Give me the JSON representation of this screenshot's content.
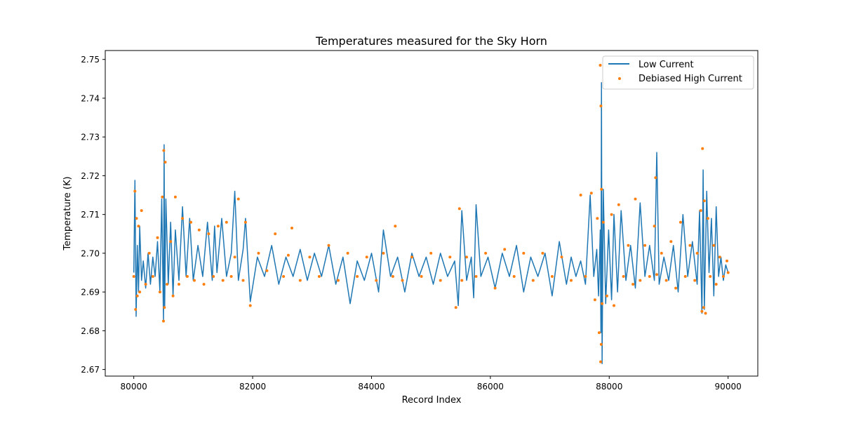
{
  "chart_data": {
    "type": "line",
    "title": "Temperatures measured for the Sky Horn",
    "xlabel": "Record Index",
    "ylabel": "Temperature (K)",
    "xlim": [
      79520,
      90500
    ],
    "ylim": [
      2.6683,
      2.7523
    ],
    "x_ticks": [
      80000,
      82000,
      84000,
      86000,
      88000,
      90000
    ],
    "x_tick_labels": [
      "80000",
      "82000",
      "84000",
      "86000",
      "88000",
      "90000"
    ],
    "y_ticks": [
      2.67,
      2.68,
      2.69,
      2.7,
      2.71,
      2.72,
      2.73,
      2.74,
      2.75
    ],
    "y_tick_labels": [
      "2.67",
      "2.68",
      "2.69",
      "2.70",
      "2.71",
      "2.72",
      "2.73",
      "2.74",
      "2.75"
    ],
    "grid": false,
    "legend_position": "top-right",
    "series": [
      {
        "name": "Low Current",
        "kind": "line",
        "color": "#1f77b4",
        "x": [
          80000,
          80020,
          80040,
          80060,
          80080,
          80100,
          80130,
          80160,
          80200,
          80240,
          80280,
          80320,
          80360,
          80400,
          80440,
          80470,
          80500,
          80510,
          80520,
          80540,
          80580,
          80620,
          80660,
          80700,
          80760,
          80820,
          80880,
          80940,
          81000,
          81080,
          81160,
          81240,
          81320,
          81360,
          81400,
          81480,
          81560,
          81640,
          81700,
          81760,
          81840,
          81880,
          81960,
          82080,
          82200,
          82320,
          82440,
          82560,
          82680,
          82800,
          82920,
          83040,
          83160,
          83280,
          83400,
          83520,
          83640,
          83760,
          83880,
          84000,
          84120,
          84200,
          84320,
          84440,
          84560,
          84680,
          84800,
          84920,
          85040,
          85160,
          85280,
          85400,
          85460,
          85520,
          85600,
          85680,
          85720,
          85760,
          85840,
          85960,
          86080,
          86200,
          86320,
          86440,
          86560,
          86680,
          86800,
          86920,
          87040,
          87160,
          87280,
          87360,
          87440,
          87520,
          87600,
          87680,
          87740,
          87790,
          87820,
          87850,
          87860,
          87870,
          87880,
          87900,
          87940,
          87990,
          88040,
          88080,
          88140,
          88200,
          88280,
          88360,
          88440,
          88520,
          88600,
          88680,
          88760,
          88800,
          88840,
          88920,
          89000,
          89080,
          89160,
          89240,
          89320,
          89400,
          89480,
          89520,
          89560,
          89580,
          89600,
          89640,
          89680,
          89720,
          89760,
          89800,
          89840,
          89880,
          89920,
          89960,
          90000
        ],
        "y": [
          2.695,
          2.7188,
          2.6837,
          2.702,
          2.69,
          2.707,
          2.693,
          2.698,
          2.691,
          2.7,
          2.692,
          2.699,
          2.694,
          2.703,
          2.69,
          2.714,
          2.6825,
          2.728,
          2.686,
          2.714,
          2.692,
          2.708,
          2.689,
          2.706,
          2.693,
          2.712,
          2.694,
          2.709,
          2.693,
          2.702,
          2.694,
          2.708,
          2.693,
          2.707,
          2.695,
          2.709,
          2.694,
          2.7,
          2.716,
          2.693,
          2.701,
          2.709,
          2.6875,
          2.699,
          2.694,
          2.702,
          2.692,
          2.699,
          2.694,
          2.701,
          2.693,
          2.7,
          2.694,
          2.702,
          2.692,
          2.699,
          2.687,
          2.698,
          2.693,
          2.7,
          2.69,
          2.706,
          2.694,
          2.699,
          2.69,
          2.7,
          2.694,
          2.699,
          2.692,
          2.7,
          2.694,
          2.698,
          2.6865,
          2.711,
          2.693,
          2.699,
          2.6885,
          2.7125,
          2.694,
          2.699,
          2.691,
          2.7,
          2.694,
          2.702,
          2.69,
          2.699,
          2.694,
          2.7,
          2.689,
          2.703,
          2.692,
          2.699,
          2.694,
          2.698,
          2.692,
          2.715,
          2.694,
          2.701,
          2.689,
          2.706,
          2.6795,
          2.744,
          2.6715,
          2.7165,
          2.687,
          2.706,
          2.688,
          2.71,
          2.69,
          2.711,
          2.693,
          2.702,
          2.691,
          2.713,
          2.694,
          2.702,
          2.693,
          2.726,
          2.692,
          2.699,
          2.693,
          2.702,
          2.69,
          2.71,
          2.694,
          2.703,
          2.692,
          2.711,
          2.6845,
          2.7215,
          2.6855,
          2.716,
          2.695,
          2.709,
          2.689,
          2.712,
          2.694,
          2.699,
          2.693,
          2.697,
          2.695
        ]
      },
      {
        "name": "Debiased High Current",
        "kind": "scatter",
        "color": "#ff7f0e",
        "x": [
          80000,
          80020,
          80030,
          80045,
          80060,
          80080,
          80100,
          80130,
          80200,
          80260,
          80320,
          80400,
          80440,
          80480,
          80500,
          80505,
          80515,
          80530,
          80560,
          80620,
          80660,
          80700,
          80760,
          80820,
          80900,
          80960,
          81020,
          81100,
          81180,
          81260,
          81340,
          81420,
          81500,
          81560,
          81640,
          81700,
          81760,
          81840,
          81880,
          81960,
          82100,
          82240,
          82380,
          82520,
          82600,
          82660,
          82800,
          82960,
          83120,
          83280,
          83440,
          83600,
          83760,
          83920,
          84080,
          84200,
          84360,
          84400,
          84520,
          84680,
          84840,
          85000,
          85160,
          85320,
          85420,
          85480,
          85520,
          85600,
          85760,
          85920,
          86080,
          86240,
          86400,
          86560,
          86720,
          86880,
          87040,
          87200,
          87360,
          87520,
          87600,
          87700,
          87760,
          87800,
          87830,
          87850,
          87855,
          87860,
          87865,
          87870,
          87880,
          87900,
          87960,
          88040,
          88080,
          88160,
          88240,
          88320,
          88400,
          88440,
          88520,
          88600,
          88680,
          88760,
          88780,
          88800,
          88880,
          88960,
          89040,
          89120,
          89200,
          89280,
          89360,
          89440,
          89480,
          89540,
          89560,
          89570,
          89590,
          89600,
          89620,
          89660,
          89700,
          89760,
          89800,
          89860,
          89920,
          89980,
          90000
        ],
        "y": [
          2.694,
          2.716,
          2.6855,
          2.709,
          2.689,
          2.707,
          2.69,
          2.711,
          2.692,
          2.7,
          2.694,
          2.704,
          2.69,
          2.7145,
          2.6825,
          2.7265,
          2.686,
          2.7235,
          2.692,
          2.703,
          2.689,
          2.7145,
          2.692,
          2.709,
          2.694,
          2.708,
          2.693,
          2.706,
          2.692,
          2.705,
          2.694,
          2.707,
          2.693,
          2.708,
          2.694,
          2.699,
          2.714,
          2.693,
          2.708,
          2.6865,
          2.7,
          2.6955,
          2.705,
          2.694,
          2.6995,
          2.7065,
          2.693,
          2.699,
          2.694,
          2.702,
          2.693,
          2.7,
          2.694,
          2.699,
          2.693,
          2.7,
          2.694,
          2.707,
          2.693,
          2.699,
          2.694,
          2.7,
          2.693,
          2.699,
          2.686,
          2.7115,
          2.693,
          2.699,
          2.694,
          2.7,
          2.691,
          2.701,
          2.694,
          2.7,
          2.693,
          2.7,
          2.694,
          2.699,
          2.693,
          2.715,
          2.694,
          2.7155,
          2.688,
          2.709,
          2.6795,
          2.7485,
          2.672,
          2.738,
          2.6765,
          2.7165,
          2.687,
          2.708,
          2.689,
          2.71,
          2.6865,
          2.7125,
          2.694,
          2.702,
          2.692,
          2.714,
          2.693,
          2.702,
          2.694,
          2.707,
          2.7195,
          2.6945,
          2.7,
          2.693,
          2.703,
          2.691,
          2.708,
          2.694,
          2.702,
          2.693,
          2.7,
          2.711,
          2.685,
          2.727,
          2.686,
          2.7135,
          2.6845,
          2.709,
          2.694,
          2.702,
          2.692,
          2.699,
          2.694,
          2.698,
          2.695
        ]
      }
    ]
  }
}
